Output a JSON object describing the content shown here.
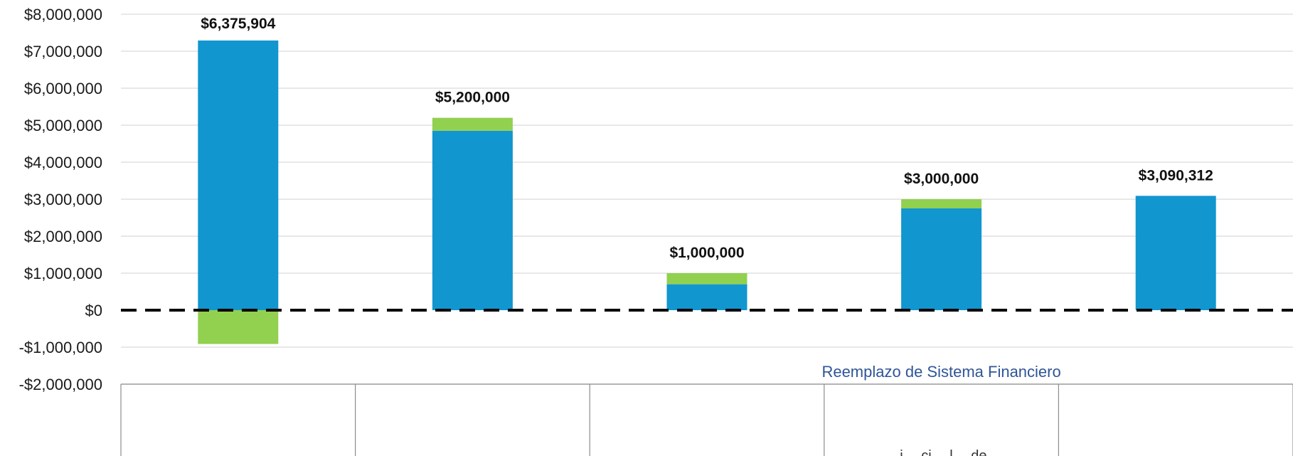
{
  "chart_data": {
    "type": "bar",
    "stacked": true,
    "categories": [
      "",
      "",
      "",
      "",
      ""
    ],
    "series": [
      {
        "values": [
          7290000,
          4850000,
          700000,
          2750000,
          3090312
        ]
      },
      {
        "values": [
          -914096,
          350000,
          300000,
          250000,
          0
        ]
      }
    ],
    "totals": [
      6375904,
      5200000,
      1000000,
      3000000,
      3090312
    ],
    "data_labels": [
      "$6,375,904",
      "$5,200,000",
      "$1,000,000",
      "$3,000,000",
      "$3,090,312"
    ],
    "ylim": [
      -2000000,
      8000000
    ],
    "y_ticks": [
      -2000000,
      -1000000,
      0,
      1000000,
      2000000,
      3000000,
      4000000,
      5000000,
      6000000,
      7000000,
      8000000
    ],
    "y_tick_labels": [
      "-$2,000,000",
      "-$1,000,000",
      "$0",
      "$1,000,000",
      "$2,000,000",
      "$3,000,000",
      "$4,000,000",
      "$5,000,000",
      "$6,000,000",
      "$7,000,000",
      "$8,000,000"
    ],
    "annotations": [
      {
        "text": "Reemplazo de Sistema Financiero",
        "category_index": 3,
        "value": -1650000
      }
    ],
    "partial_category_labels": [
      {
        "category_index": 3,
        "text": "… i… ci… l… de…"
      }
    ],
    "grid": true,
    "zero_line": "dashed",
    "legend": "none",
    "xlabel": "",
    "ylabel": "",
    "title": ""
  },
  "colors": {
    "primary": "#1196d0",
    "secondary": "#92d050",
    "annotation": "#2f5597",
    "grid": "#d9d9d9",
    "axis": "#8c8c8c",
    "zero_line": "#000000",
    "text": "#1a1a1a"
  }
}
